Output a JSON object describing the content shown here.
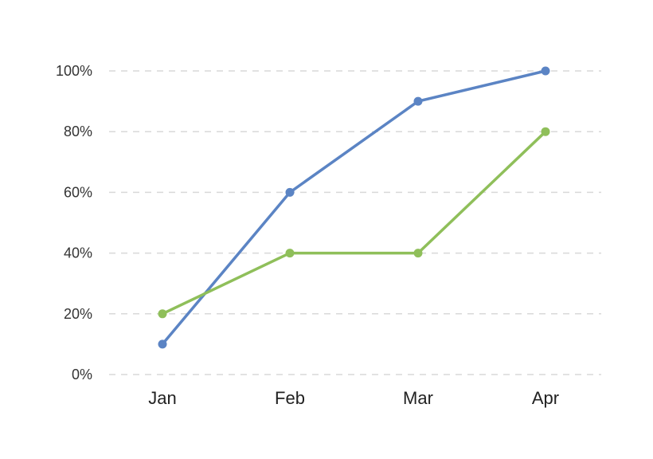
{
  "chart_data": {
    "type": "line",
    "title": "",
    "xlabel": "",
    "ylabel": "",
    "categories": [
      "Jan",
      "Feb",
      "Mar",
      "Apr"
    ],
    "yticks": [
      0,
      20,
      40,
      60,
      80,
      100
    ],
    "ytick_labels": [
      "0%",
      "20%",
      "40%",
      "60%",
      "80%",
      "100%"
    ],
    "ylim": [
      0,
      100
    ],
    "grid": true,
    "legend": "none",
    "series": [
      {
        "values": [
          10,
          60,
          90,
          100
        ],
        "color": "#5b84c4"
      },
      {
        "values": [
          20,
          40,
          40,
          80
        ],
        "color": "#8fbf5a"
      }
    ]
  }
}
